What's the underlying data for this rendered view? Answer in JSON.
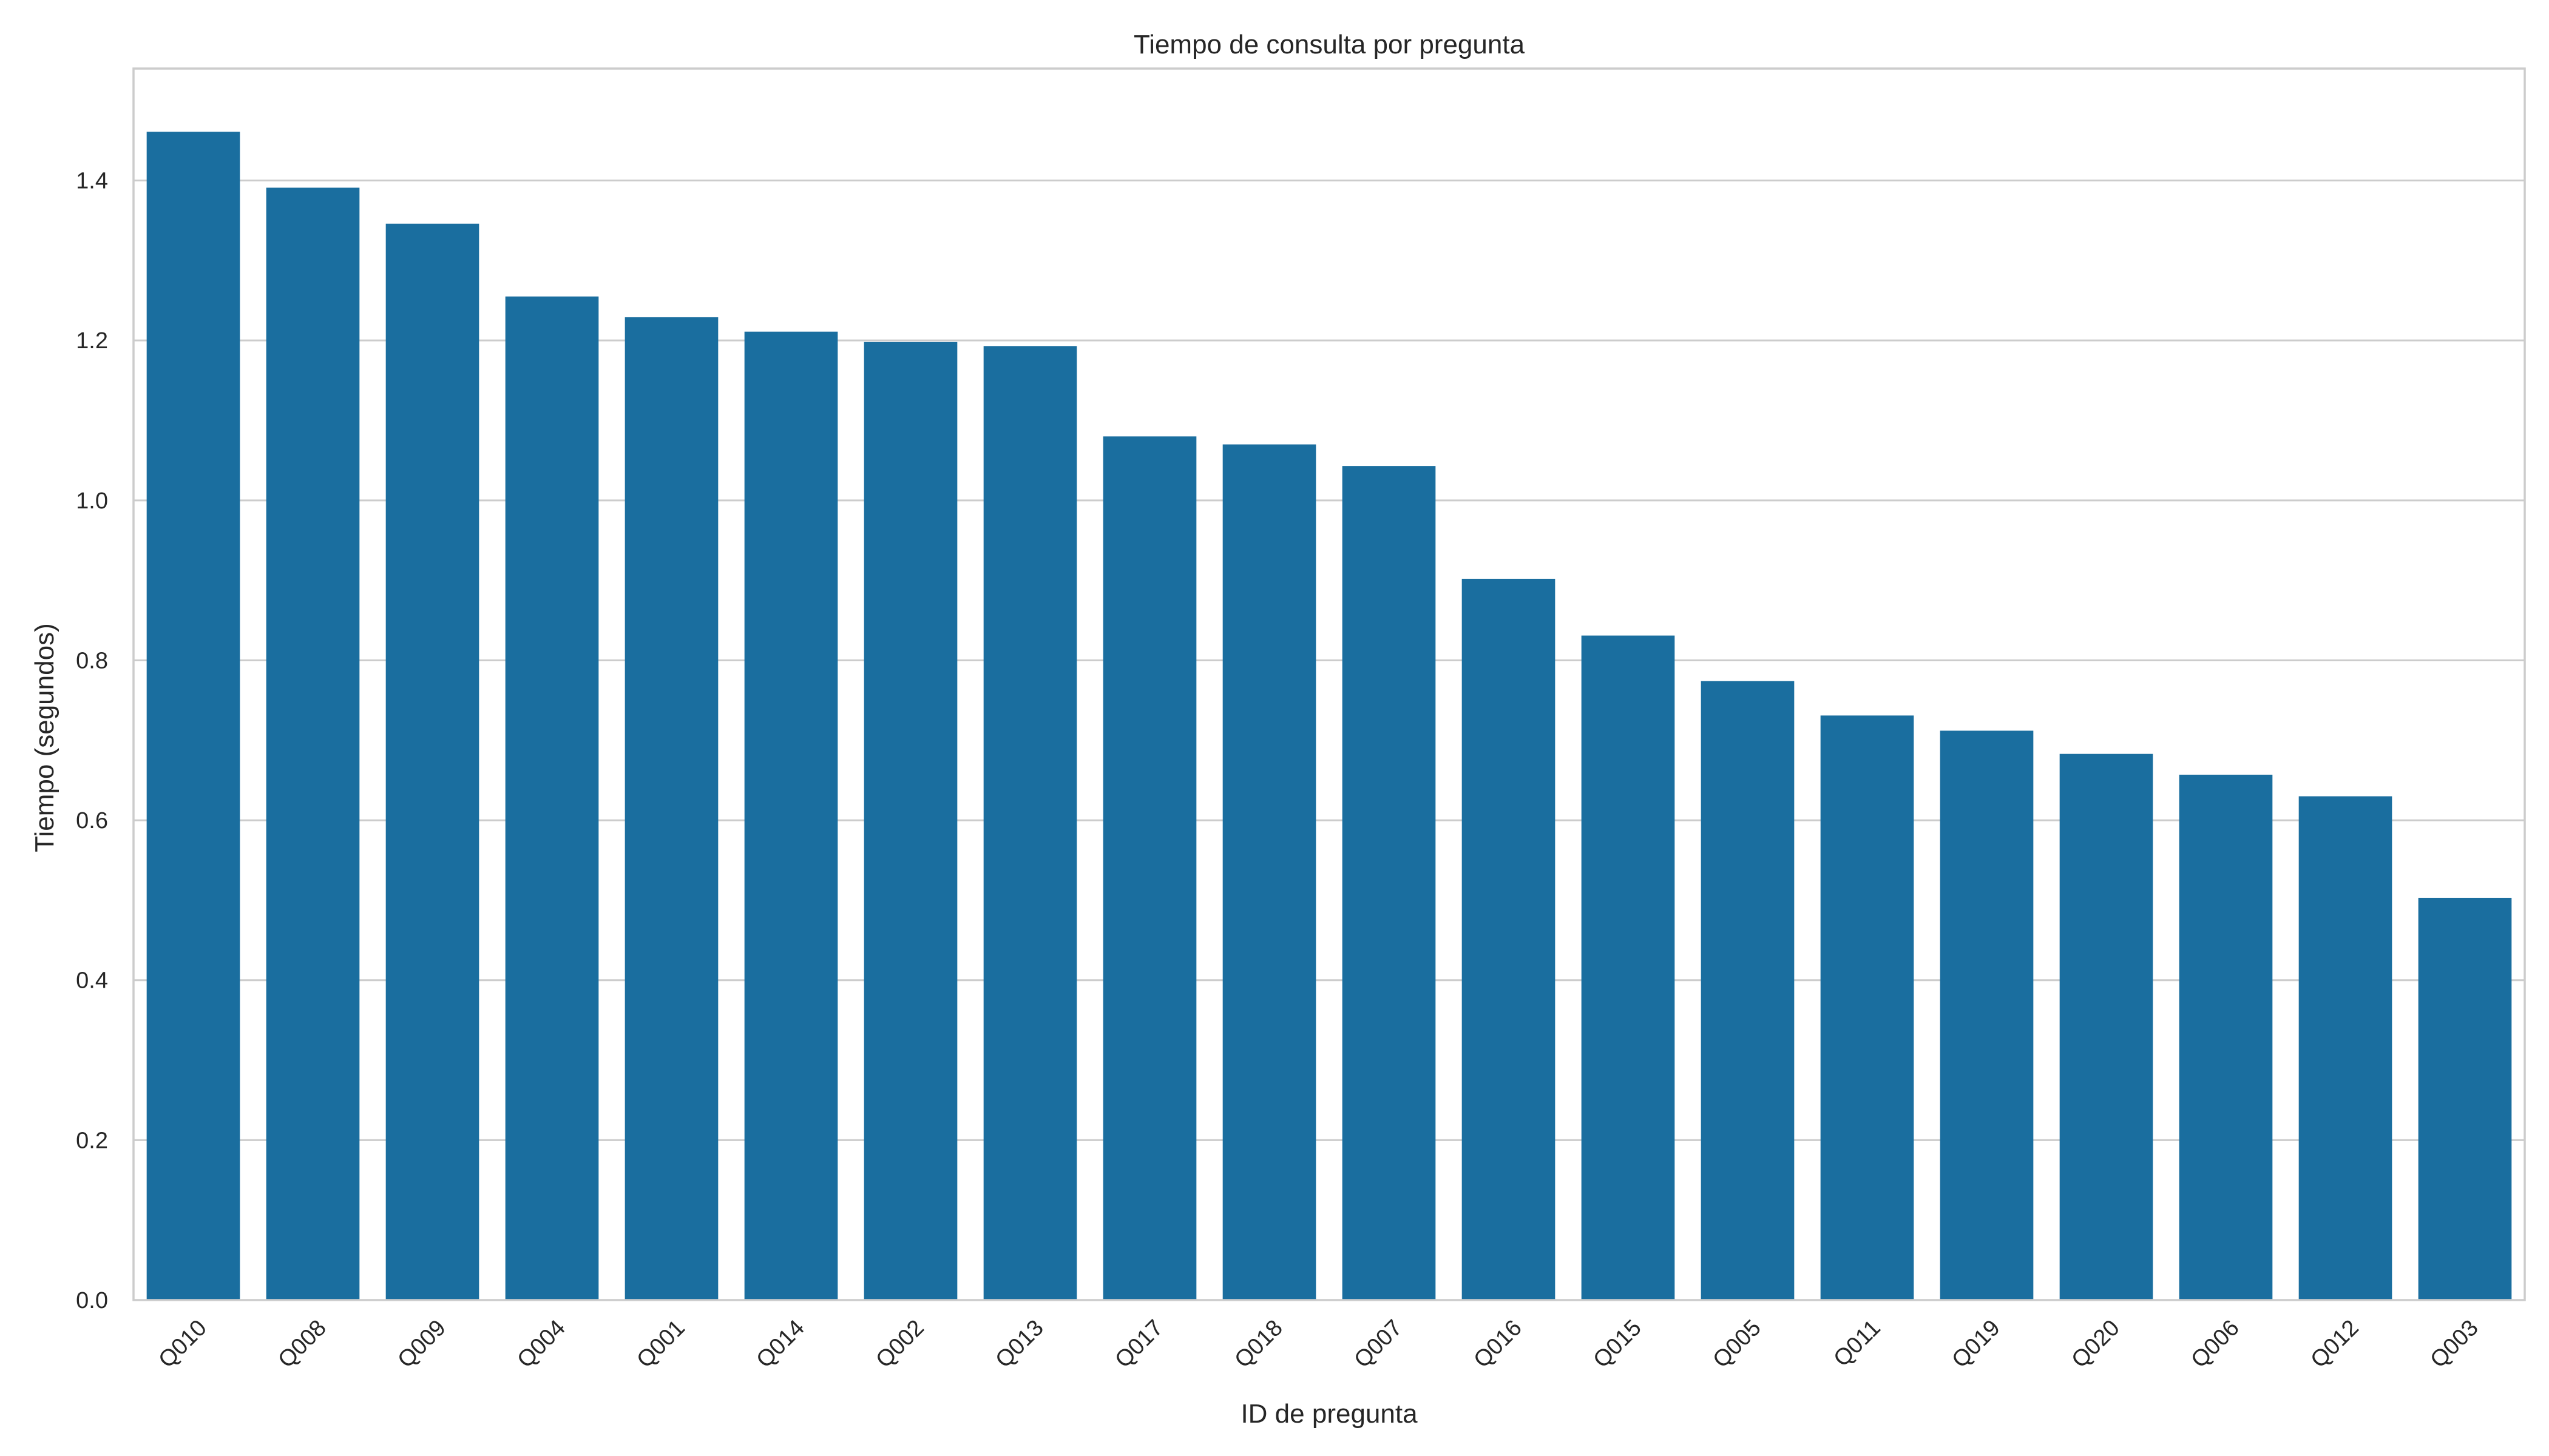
{
  "chart_data": {
    "type": "bar",
    "title": "Tiempo de consulta por pregunta",
    "xlabel": "ID de pregunta",
    "ylabel": "Tiempo (segundos)",
    "categories": [
      "Q010",
      "Q008",
      "Q009",
      "Q004",
      "Q001",
      "Q014",
      "Q002",
      "Q013",
      "Q017",
      "Q018",
      "Q007",
      "Q016",
      "Q015",
      "Q005",
      "Q011",
      "Q019",
      "Q020",
      "Q006",
      "Q012",
      "Q003"
    ],
    "values": [
      1.461,
      1.391,
      1.346,
      1.255,
      1.229,
      1.211,
      1.198,
      1.193,
      1.08,
      1.07,
      1.043,
      0.902,
      0.831,
      0.774,
      0.731,
      0.712,
      0.683,
      0.657,
      0.63,
      0.503
    ],
    "ylim": [
      0,
      1.54
    ],
    "yticks": [
      "0.0",
      "0.2",
      "0.4",
      "0.6",
      "0.8",
      "1.0",
      "1.2",
      "1.4"
    ],
    "grid": "horizontal",
    "bar_color": "#1a6e9f",
    "grid_color": "#cccccc"
  }
}
